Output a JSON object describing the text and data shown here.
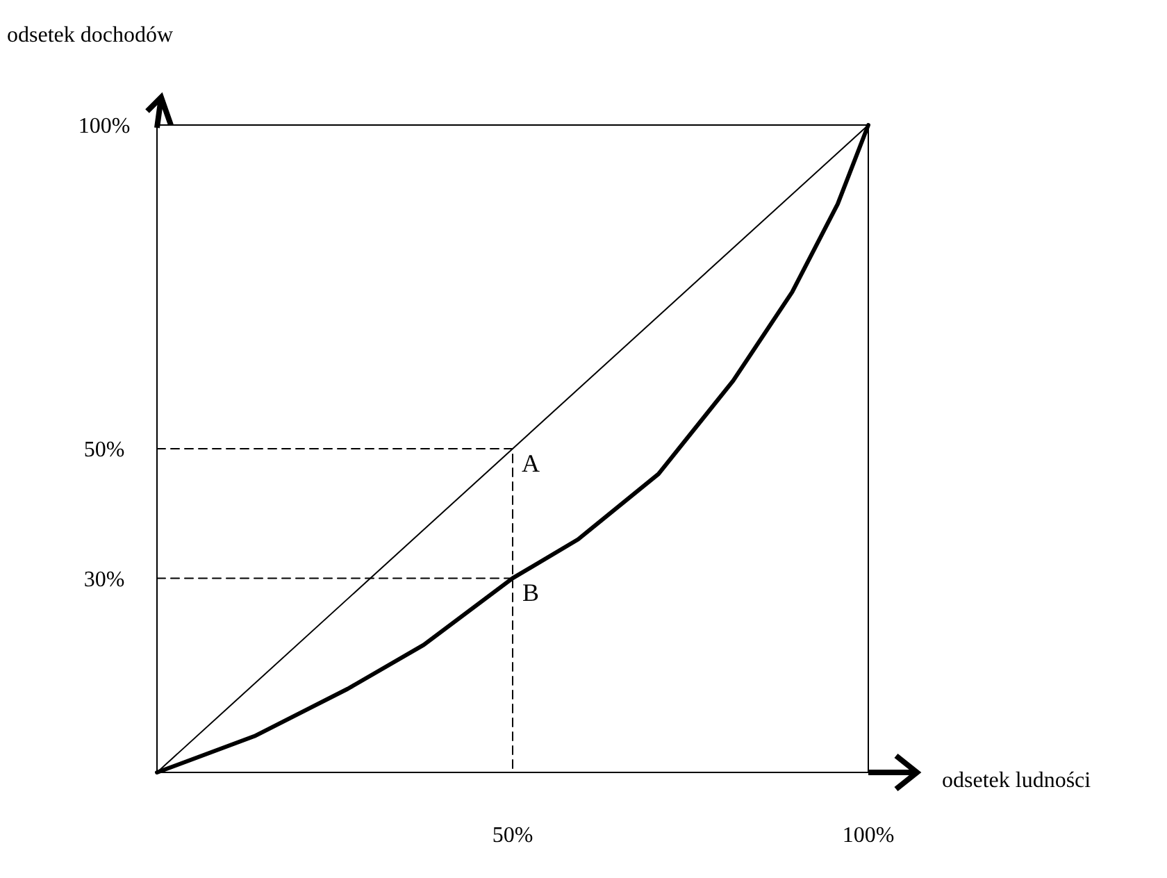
{
  "chart_data": {
    "type": "line",
    "xlabel": "odsetek ludności",
    "ylabel": "odsetek dochodów",
    "xlim": [
      0,
      100
    ],
    "ylim": [
      0,
      100
    ],
    "xticks": [
      {
        "value": 50,
        "label": "50%"
      },
      {
        "value": 100,
        "label": "100%"
      }
    ],
    "yticks": [
      {
        "value": 30,
        "label": "30%"
      },
      {
        "value": 50,
        "label": "50%"
      },
      {
        "value": 100,
        "label": "100%"
      }
    ],
    "grid": false,
    "series": [
      {
        "color": "#000000",
        "x": [
          0,
          13.7,
          26.8,
          37.5,
          50,
          59.2,
          70.5,
          81,
          89.3,
          95.7,
          100
        ],
        "values": [
          0,
          5.6,
          12.9,
          19.7,
          30,
          36,
          46.1,
          60.5,
          74.2,
          87.8,
          100
        ],
        "line_style": "solid"
      },
      {
        "color": "#000000",
        "x": [
          0,
          100
        ],
        "values": [
          0,
          100
        ],
        "line_style": "solid"
      },
      {
        "color": "#000000",
        "x": [
          0,
          50,
          50
        ],
        "values": [
          50,
          50,
          0
        ],
        "line_style": "dashed"
      },
      {
        "color": "#000000",
        "x": [
          0,
          50
        ],
        "values": [
          30,
          30
        ],
        "line_style": "dashed"
      }
    ],
    "annotations": [
      {
        "text": "A",
        "x": 50,
        "y": 50
      },
      {
        "text": "B",
        "x": 50,
        "y": 30
      }
    ]
  }
}
